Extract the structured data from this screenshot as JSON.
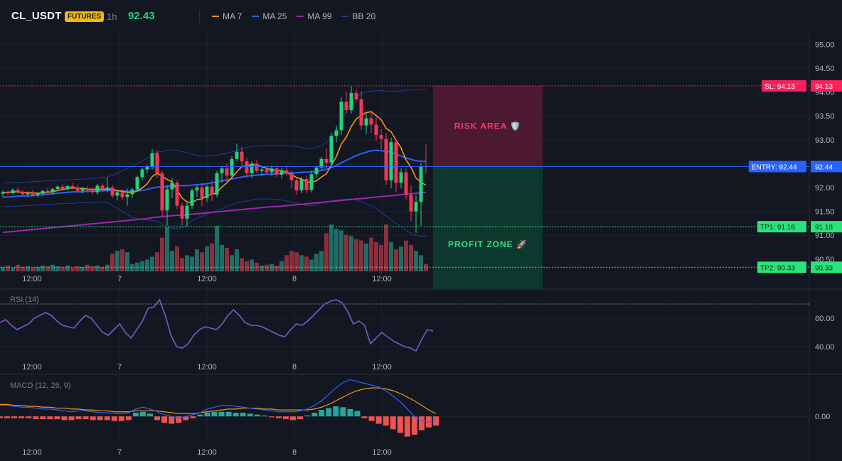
{
  "header": {
    "symbol": "CL_USDT",
    "badge": "FUTURES",
    "interval": "1h",
    "last_price": "92.43",
    "indicators": [
      {
        "name": "MA 7",
        "color": "#f7931a"
      },
      {
        "name": "MA 25",
        "color": "#2962ff"
      },
      {
        "name": "MA 99",
        "color": "#9c27b0"
      },
      {
        "name": "BB 20",
        "color": "#1e3a78"
      }
    ]
  },
  "colors": {
    "up": "#26d07c",
    "down": "#f23658",
    "vol_up": "#1f6d66",
    "vol_down": "#8c2f3c",
    "entry": "#2962ff",
    "sl": "#ff1f5b",
    "tp": "#2be37a",
    "rsi": "#7e57c2",
    "macd": "#2962ff",
    "signal": "#f7931a",
    "hist_up": "#26a69a",
    "hist_down": "#ef5350"
  },
  "levels": {
    "sl": {
      "label": "SL: 94.13",
      "axis_label": "94.13",
      "value": 94.13
    },
    "entry": {
      "label": "ENTRY: 92.44",
      "axis_label": "92.44",
      "value": 92.44
    },
    "tp1": {
      "label": "TP1: 91.18",
      "axis_label": "91.18",
      "value": 91.18
    },
    "tp2": {
      "label": "TP2: 90.33",
      "axis_label": "90.33",
      "value": 90.33
    }
  },
  "zones": {
    "risk": "RISK AREA 🛡️",
    "profit": "PROFIT ZONE 🚀"
  },
  "panes": {
    "rsi_label": "RSI (14)",
    "macd_label": "MACD (12, 26, 9)"
  },
  "chart_data": {
    "type": "candlestick",
    "y_ticks": [
      95.0,
      94.5,
      94.0,
      93.5,
      93.0,
      92.5,
      92.0,
      91.5,
      91.0,
      90.5
    ],
    "x_tick_labels": [
      "12:00",
      "7",
      "12:00",
      "8",
      "12:00"
    ],
    "ylim": [
      90.2,
      95.2
    ],
    "candles": [
      [
        91.87,
        91.95,
        91.8,
        91.9
      ],
      [
        91.9,
        91.94,
        91.84,
        91.88
      ],
      [
        91.88,
        91.98,
        91.85,
        91.95
      ],
      [
        91.95,
        91.99,
        91.88,
        91.91
      ],
      [
        91.91,
        91.95,
        91.83,
        91.86
      ],
      [
        91.86,
        91.92,
        91.8,
        91.89
      ],
      [
        91.89,
        91.94,
        91.82,
        91.84
      ],
      [
        91.84,
        91.9,
        91.79,
        91.87
      ],
      [
        91.87,
        91.95,
        91.84,
        91.93
      ],
      [
        91.93,
        91.99,
        91.86,
        91.9
      ],
      [
        91.9,
        92.0,
        91.86,
        91.97
      ],
      [
        91.97,
        92.05,
        91.92,
        92.02
      ],
      [
        92.02,
        92.07,
        91.94,
        91.97
      ],
      [
        91.97,
        92.06,
        91.93,
        92.03
      ],
      [
        92.03,
        92.09,
        91.96,
        92.0
      ],
      [
        92.0,
        92.05,
        91.9,
        91.93
      ],
      [
        91.93,
        92.01,
        91.88,
        91.98
      ],
      [
        91.98,
        92.03,
        91.9,
        91.94
      ],
      [
        91.94,
        92.0,
        91.86,
        91.9
      ],
      [
        91.9,
        92.08,
        91.85,
        92.04
      ],
      [
        92.04,
        92.1,
        91.93,
        91.97
      ],
      [
        91.97,
        92.22,
        91.9,
        92.0
      ],
      [
        92.0,
        92.05,
        91.78,
        91.83
      ],
      [
        91.83,
        91.92,
        91.73,
        91.9
      ],
      [
        91.9,
        91.96,
        91.75,
        91.8
      ],
      [
        91.8,
        91.98,
        91.62,
        91.86
      ],
      [
        91.86,
        91.99,
        91.78,
        91.96
      ],
      [
        91.96,
        92.25,
        91.9,
        92.22
      ],
      [
        92.22,
        92.42,
        92.15,
        92.38
      ],
      [
        92.38,
        92.48,
        92.3,
        92.44
      ],
      [
        92.44,
        92.8,
        92.38,
        92.72
      ],
      [
        92.72,
        92.78,
        92.2,
        92.3
      ],
      [
        92.3,
        92.36,
        91.4,
        91.52
      ],
      [
        91.52,
        92.05,
        91.2,
        91.96
      ],
      [
        91.96,
        92.2,
        91.78,
        92.1
      ],
      [
        92.1,
        92.15,
        91.55,
        91.62
      ],
      [
        91.62,
        91.68,
        91.2,
        91.35
      ],
      [
        91.35,
        91.72,
        91.18,
        91.62
      ],
      [
        91.62,
        91.98,
        91.55,
        91.94
      ],
      [
        91.94,
        92.05,
        91.8,
        92.0
      ],
      [
        92.0,
        92.1,
        91.6,
        91.78
      ],
      [
        91.78,
        92.05,
        91.7,
        92.02
      ],
      [
        92.02,
        92.15,
        91.72,
        91.85
      ],
      [
        91.85,
        92.35,
        91.8,
        92.3
      ],
      [
        92.3,
        92.45,
        92.1,
        92.4
      ],
      [
        92.4,
        92.5,
        92.08,
        92.25
      ],
      [
        92.25,
        92.66,
        92.2,
        92.6
      ],
      [
        92.6,
        92.92,
        92.55,
        92.75
      ],
      [
        92.75,
        92.85,
        92.45,
        92.55
      ],
      [
        92.55,
        92.62,
        92.2,
        92.3
      ],
      [
        92.3,
        92.55,
        92.2,
        92.5
      ],
      [
        92.5,
        92.58,
        92.3,
        92.35
      ],
      [
        92.35,
        92.45,
        92.25,
        92.38
      ],
      [
        92.38,
        92.44,
        92.28,
        92.32
      ],
      [
        92.32,
        92.46,
        92.25,
        92.4
      ],
      [
        92.4,
        92.44,
        92.22,
        92.27
      ],
      [
        92.27,
        92.42,
        92.2,
        92.36
      ],
      [
        92.36,
        92.46,
        92.25,
        92.3
      ],
      [
        92.3,
        92.36,
        92.0,
        92.15
      ],
      [
        92.15,
        92.2,
        91.85,
        91.94
      ],
      [
        91.94,
        92.22,
        91.88,
        92.18
      ],
      [
        92.18,
        92.25,
        91.88,
        91.95
      ],
      [
        91.95,
        92.35,
        91.9,
        92.28
      ],
      [
        92.28,
        92.45,
        92.2,
        92.42
      ],
      [
        92.42,
        92.65,
        92.35,
        92.6
      ],
      [
        92.6,
        92.82,
        92.4,
        92.52
      ],
      [
        92.52,
        93.15,
        92.48,
        93.08
      ],
      [
        93.08,
        93.3,
        92.95,
        93.2
      ],
      [
        93.2,
        93.9,
        93.1,
        93.8
      ],
      [
        93.8,
        94.0,
        93.55,
        93.62
      ],
      [
        93.62,
        94.12,
        93.55,
        93.98
      ],
      [
        93.98,
        94.05,
        93.78,
        93.85
      ],
      [
        93.85,
        94.02,
        93.2,
        93.3
      ],
      [
        93.3,
        93.55,
        93.12,
        93.45
      ],
      [
        93.45,
        93.58,
        93.15,
        93.32
      ],
      [
        93.32,
        93.5,
        92.98,
        93.1
      ],
      [
        93.1,
        93.22,
        92.8,
        93.02
      ],
      [
        93.02,
        93.15,
        92.05,
        92.15
      ],
      [
        92.15,
        93.05,
        91.98,
        92.95
      ],
      [
        92.95,
        93.0,
        91.9,
        92.1
      ],
      [
        92.1,
        92.4,
        91.98,
        92.32
      ],
      [
        92.32,
        92.4,
        91.75,
        91.85
      ],
      [
        91.85,
        92.05,
        91.3,
        91.5
      ],
      [
        91.5,
        91.85,
        91.05,
        91.7
      ],
      [
        91.7,
        92.52,
        91.2,
        92.45
      ],
      [
        92.45,
        92.9,
        92.3,
        92.43
      ]
    ],
    "volume": [
      6,
      8,
      5,
      9,
      6,
      7,
      5,
      6,
      8,
      7,
      9,
      7,
      6,
      8,
      5,
      7,
      6,
      9,
      7,
      8,
      6,
      9,
      24,
      28,
      30,
      26,
      10,
      12,
      14,
      16,
      20,
      26,
      46,
      60,
      28,
      34,
      18,
      22,
      20,
      30,
      26,
      34,
      38,
      62,
      36,
      32,
      22,
      30,
      18,
      14,
      16,
      12,
      8,
      9,
      10,
      8,
      14,
      22,
      28,
      26,
      22,
      20,
      16,
      24,
      28,
      52,
      64,
      58,
      56,
      50,
      48,
      44,
      42,
      38,
      46,
      40,
      36,
      64,
      40,
      30,
      34,
      42,
      36,
      28,
      22,
      10
    ],
    "ma7": [
      91.9,
      91.9,
      91.91,
      91.91,
      91.9,
      91.89,
      91.89,
      91.88,
      91.89,
      91.9,
      91.91,
      91.94,
      91.96,
      91.98,
      91.99,
      91.99,
      91.98,
      91.97,
      91.96,
      91.97,
      91.96,
      91.97,
      91.96,
      91.94,
      91.92,
      91.9,
      91.89,
      91.93,
      91.99,
      92.08,
      92.23,
      92.3,
      92.23,
      92.17,
      92.12,
      91.95,
      91.78,
      91.7,
      91.68,
      91.75,
      91.76,
      91.83,
      91.86,
      91.89,
      92.01,
      92.1,
      92.21,
      92.33,
      92.44,
      92.45,
      92.49,
      92.48,
      92.44,
      92.4,
      92.37,
      92.36,
      92.35,
      92.32,
      92.27,
      92.21,
      92.18,
      92.12,
      92.11,
      92.14,
      92.22,
      92.29,
      92.47,
      92.65,
      92.91,
      93.06,
      93.28,
      93.44,
      93.51,
      93.57,
      93.59,
      93.51,
      93.42,
      93.24,
      93.17,
      92.99,
      92.83,
      92.58,
      92.42,
      92.2,
      92.11,
      92.05
    ],
    "ma25": [
      91.8,
      91.8,
      91.81,
      91.82,
      91.82,
      91.83,
      91.83,
      91.84,
      91.85,
      91.86,
      91.87,
      91.88,
      91.89,
      91.9,
      91.91,
      91.91,
      91.91,
      91.92,
      91.92,
      91.93,
      91.93,
      91.94,
      91.94,
      91.93,
      91.93,
      91.92,
      91.92,
      91.93,
      91.94,
      91.96,
      91.99,
      92.01,
      92.01,
      92.02,
      92.04,
      92.04,
      92.04,
      92.04,
      92.05,
      92.06,
      92.07,
      92.08,
      92.1,
      92.12,
      92.14,
      92.16,
      92.18,
      92.2,
      92.22,
      92.24,
      92.25,
      92.26,
      92.27,
      92.28,
      92.28,
      92.29,
      92.3,
      92.3,
      92.31,
      92.31,
      92.32,
      92.32,
      92.33,
      92.34,
      92.36,
      92.38,
      92.42,
      92.46,
      92.52,
      92.57,
      92.62,
      92.67,
      92.71,
      92.74,
      92.77,
      92.78,
      92.77,
      92.76,
      92.74,
      92.7,
      92.66,
      92.62,
      92.59,
      92.56,
      92.55,
      92.55
    ],
    "ma99": [
      91.06,
      91.07,
      91.08,
      91.09,
      91.1,
      91.11,
      91.12,
      91.13,
      91.14,
      91.15,
      91.16,
      91.17,
      91.18,
      91.19,
      91.2,
      91.21,
      91.22,
      91.23,
      91.24,
      91.25,
      91.26,
      91.27,
      91.28,
      91.29,
      91.3,
      91.31,
      91.32,
      91.33,
      91.34,
      91.35,
      91.37,
      91.38,
      91.39,
      91.4,
      91.41,
      91.42,
      91.42,
      91.43,
      91.44,
      91.45,
      91.46,
      91.47,
      91.48,
      91.49,
      91.5,
      91.51,
      91.52,
      91.53,
      91.54,
      91.55,
      91.56,
      91.57,
      91.58,
      91.59,
      91.6,
      91.6,
      91.61,
      91.62,
      91.63,
      91.64,
      91.65,
      91.66,
      91.67,
      91.68,
      91.69,
      91.7,
      91.71,
      91.72,
      91.73,
      91.74,
      91.75,
      91.76,
      91.77,
      91.78,
      91.79,
      91.8,
      91.81,
      91.82,
      91.83,
      91.84,
      91.85,
      91.86,
      91.87,
      91.88,
      91.89,
      91.9
    ],
    "bb_upper": [
      92.1,
      92.1,
      92.1,
      92.11,
      92.11,
      92.12,
      92.12,
      92.13,
      92.13,
      92.14,
      92.14,
      92.15,
      92.16,
      92.16,
      92.17,
      92.17,
      92.18,
      92.18,
      92.19,
      92.2,
      92.21,
      92.22,
      92.26,
      92.3,
      92.35,
      92.4,
      92.45,
      92.5,
      92.56,
      92.62,
      92.7,
      92.74,
      92.76,
      92.78,
      92.79,
      92.78,
      92.76,
      92.73,
      92.7,
      92.68,
      92.66,
      92.66,
      92.67,
      92.68,
      92.7,
      92.72,
      92.75,
      92.78,
      92.82,
      92.84,
      92.86,
      92.87,
      92.88,
      92.88,
      92.88,
      92.88,
      92.88,
      92.88,
      92.87,
      92.86,
      92.84,
      92.82,
      92.82,
      92.84,
      92.88,
      92.94,
      93.05,
      93.2,
      93.4,
      93.6,
      93.78,
      93.9,
      93.96,
      94.0,
      94.02,
      94.03,
      94.03,
      94.02,
      94.02,
      94.02,
      94.03,
      94.04,
      94.05,
      94.05,
      94.05,
      94.06
    ],
    "bb_lower": [
      91.6,
      91.6,
      91.61,
      91.61,
      91.62,
      91.62,
      91.63,
      91.63,
      91.64,
      91.65,
      91.65,
      91.66,
      91.66,
      91.67,
      91.67,
      91.68,
      91.68,
      91.69,
      91.69,
      91.7,
      91.69,
      91.68,
      91.62,
      91.56,
      91.5,
      91.44,
      91.38,
      91.35,
      91.33,
      91.32,
      91.31,
      91.3,
      91.24,
      91.18,
      91.15,
      91.14,
      91.16,
      91.22,
      91.3,
      91.36,
      91.4,
      91.44,
      91.48,
      91.52,
      91.56,
      91.6,
      91.64,
      91.68,
      91.7,
      91.72,
      91.74,
      91.76,
      91.76,
      91.76,
      91.76,
      91.75,
      91.74,
      91.72,
      91.7,
      91.68,
      91.65,
      91.62,
      91.62,
      91.64,
      91.68,
      91.7,
      91.72,
      91.74,
      91.75,
      91.76,
      91.76,
      91.74,
      91.7,
      91.66,
      91.62,
      91.56,
      91.48,
      91.4,
      91.32,
      91.25,
      91.18,
      91.1,
      91.04,
      91.0,
      90.98,
      90.98
    ],
    "rsi": {
      "y_ticks": [
        60.0,
        40.0
      ],
      "ylim": [
        30,
        80
      ],
      "overbought": 70,
      "values": [
        57,
        59,
        55,
        52,
        54,
        56,
        60,
        62,
        64,
        62,
        58,
        55,
        54,
        53,
        58,
        62,
        60,
        55,
        50,
        48,
        52,
        56,
        50,
        46,
        52,
        58,
        67,
        68,
        73,
        62,
        48,
        40,
        39,
        42,
        48,
        52,
        54,
        53,
        52,
        56,
        62,
        66,
        62,
        57,
        55,
        55,
        54,
        52,
        50,
        48,
        47,
        52,
        56,
        55,
        58,
        62,
        66,
        70,
        72,
        73,
        71,
        65,
        56,
        58,
        55,
        42,
        46,
        50,
        47,
        44,
        42,
        40,
        39,
        37,
        45,
        52,
        51
      ]
    },
    "macd": {
      "y_ticks": [
        0.0
      ],
      "ylim": [
        -0.3,
        0.45
      ],
      "macd": [
        0.12,
        0.12,
        0.11,
        0.1,
        0.1,
        0.09,
        0.08,
        0.08,
        0.07,
        0.06,
        0.05,
        0.06,
        0.06,
        0.05,
        0.04,
        0.04,
        0.03,
        0.03,
        0.04,
        0.08,
        0.1,
        0.08,
        0.05,
        0.02,
        0.0,
        -0.02,
        0.0,
        0.02,
        0.04,
        0.08,
        0.1,
        0.12,
        0.12,
        0.11,
        0.1,
        0.09,
        0.08,
        0.07,
        0.06,
        0.05,
        0.05,
        0.05,
        0.06,
        0.08,
        0.12,
        0.17,
        0.24,
        0.31,
        0.37,
        0.4,
        0.38,
        0.36,
        0.34,
        0.32,
        0.28,
        0.22,
        0.16,
        0.08,
        0.0,
        -0.05,
        -0.06,
        -0.04
      ],
      "signal": [
        0.13,
        0.13,
        0.12,
        0.12,
        0.11,
        0.11,
        0.1,
        0.1,
        0.09,
        0.09,
        0.08,
        0.08,
        0.07,
        0.07,
        0.06,
        0.06,
        0.05,
        0.05,
        0.05,
        0.06,
        0.06,
        0.06,
        0.06,
        0.05,
        0.04,
        0.03,
        0.03,
        0.03,
        0.04,
        0.05,
        0.06,
        0.07,
        0.08,
        0.08,
        0.09,
        0.09,
        0.09,
        0.08,
        0.08,
        0.07,
        0.07,
        0.07,
        0.07,
        0.07,
        0.08,
        0.1,
        0.13,
        0.17,
        0.21,
        0.25,
        0.28,
        0.3,
        0.31,
        0.31,
        0.3,
        0.28,
        0.25,
        0.21,
        0.17,
        0.12,
        0.07,
        0.03
      ],
      "hist": [
        -0.02,
        -0.02,
        -0.02,
        -0.02,
        -0.02,
        -0.03,
        -0.03,
        -0.03,
        -0.03,
        -0.04,
        -0.04,
        -0.03,
        -0.03,
        -0.04,
        -0.04,
        -0.04,
        -0.05,
        -0.05,
        -0.04,
        0.04,
        0.05,
        0.03,
        -0.04,
        -0.07,
        -0.08,
        -0.07,
        -0.04,
        -0.02,
        0.02,
        0.04,
        0.05,
        0.05,
        0.05,
        0.04,
        0.04,
        0.03,
        0.02,
        0.01,
        -0.01,
        -0.02,
        -0.03,
        -0.04,
        -0.03,
        0.01,
        0.04,
        0.07,
        0.09,
        0.11,
        0.1,
        0.08,
        0.06,
        -0.02,
        -0.05,
        -0.08,
        -0.1,
        -0.14,
        -0.18,
        -0.22,
        -0.2,
        -0.15,
        -0.12,
        -0.1
      ]
    }
  }
}
